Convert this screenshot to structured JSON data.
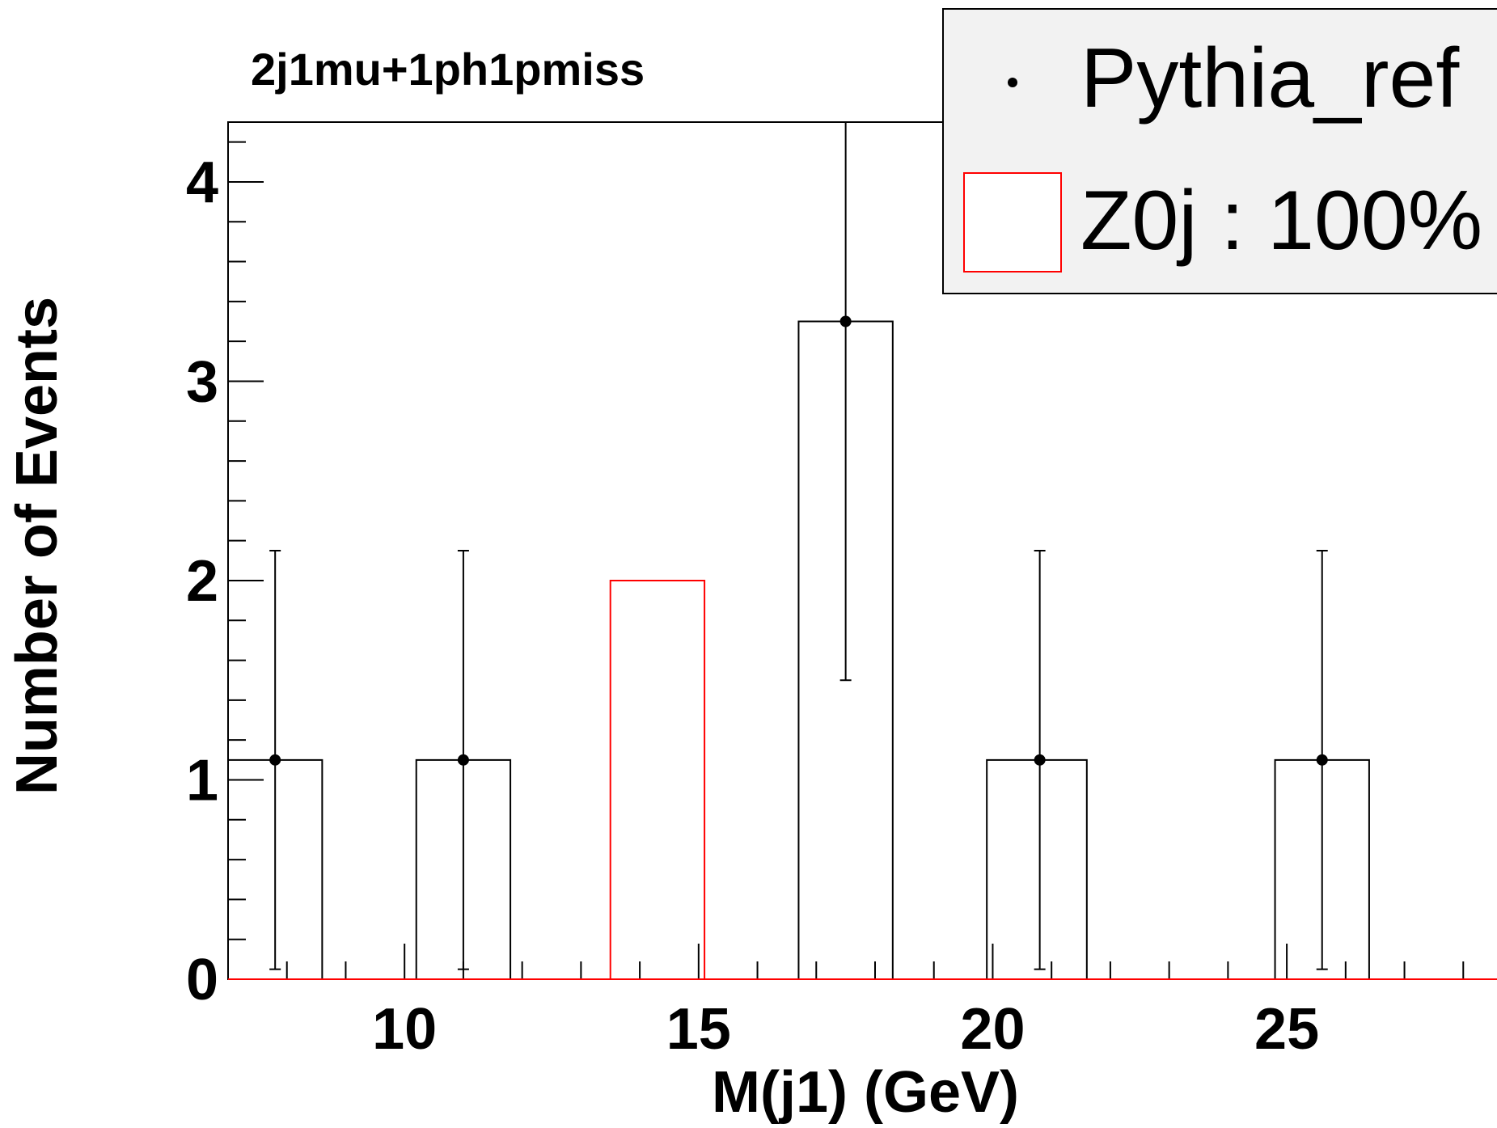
{
  "chart_data": {
    "type": "bar",
    "title": "2j1mu+1ph1pmiss",
    "xlabel": "M(j1) (GeV)",
    "ylabel": "Number of Events",
    "xlim": [
      7,
      29
    ],
    "ylim": [
      0,
      4.3
    ],
    "x_ticks": [
      10,
      15,
      20,
      25
    ],
    "y_ticks": [
      0,
      1,
      2,
      3,
      4
    ],
    "grid": false,
    "legend_position": "top-right",
    "legend": [
      {
        "label": "Pythia_ref",
        "marker": "point",
        "color": "#000000"
      },
      {
        "label": "Z0j : 100%",
        "marker": "box",
        "color": "#ff0000"
      }
    ],
    "series": [
      {
        "name": "Pythia_ref",
        "kind": "histogram-with-points",
        "color": "#000000",
        "bins": [
          {
            "x0": 7.0,
            "x1": 8.6,
            "value": 1.1
          },
          {
            "x0": 10.2,
            "x1": 11.8,
            "value": 1.1
          },
          {
            "x0": 16.7,
            "x1": 18.3,
            "value": 3.3
          },
          {
            "x0": 19.9,
            "x1": 21.6,
            "value": 1.1
          },
          {
            "x0": 24.8,
            "x1": 26.4,
            "value": 1.1
          }
        ],
        "points": [
          {
            "x": 7.8,
            "y": 1.1,
            "err_low": 1.05,
            "err_high": 1.05
          },
          {
            "x": 11.0,
            "y": 1.1,
            "err_low": 1.05,
            "err_high": 1.05
          },
          {
            "x": 17.5,
            "y": 3.3,
            "err_low": 1.8,
            "err_high": 1.0
          },
          {
            "x": 20.8,
            "y": 1.1,
            "err_low": 1.05,
            "err_high": 1.05
          },
          {
            "x": 25.6,
            "y": 1.1,
            "err_low": 1.05,
            "err_high": 1.05
          }
        ]
      },
      {
        "name": "Z0j : 100%",
        "kind": "histogram",
        "color": "#ff0000",
        "bins": [
          {
            "x0": 13.5,
            "x1": 15.1,
            "value": 2.0
          }
        ]
      }
    ]
  }
}
